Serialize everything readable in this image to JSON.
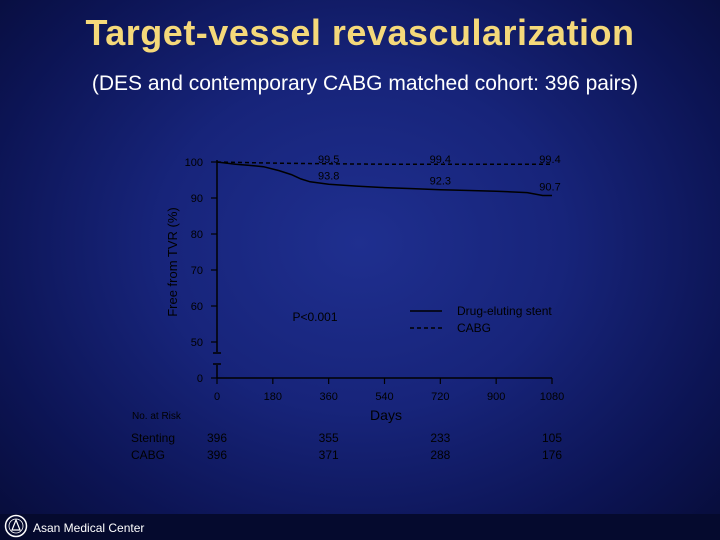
{
  "slide": {
    "title": "Target-vessel revascularization",
    "subtitle": "(DES and contemporary CABG matched cohort: 396 pairs)",
    "footer": "Asan Medical Center"
  },
  "colors": {
    "title": "#f5d97a",
    "background": "#17247a",
    "series": "#000000"
  },
  "chart_data": {
    "type": "line",
    "xlabel": "Days",
    "ylabel": "Free from TVR (%)",
    "x_ticks": [
      "0",
      "180",
      "360",
      "540",
      "720",
      "900",
      "1080"
    ],
    "y_ticks": [
      "0",
      "50",
      "60",
      "70",
      "80",
      "90",
      "100"
    ],
    "xlim": [
      0,
      1080
    ],
    "ylim": [
      0,
      100
    ],
    "axis_break": "between 0 and 50",
    "p_value": "P<0.001",
    "legend_position": "right",
    "series": [
      {
        "name": "Drug-eluting stent",
        "style": "solid",
        "x": [
          0,
          30,
          60,
          100,
          150,
          200,
          240,
          270,
          300,
          360,
          450,
          540,
          630,
          720,
          800,
          900,
          1000,
          1050,
          1080
        ],
        "y": [
          100,
          99.7,
          99.4,
          99.1,
          98.7,
          97.6,
          96.5,
          95.3,
          94.5,
          93.8,
          93.3,
          92.9,
          92.6,
          92.3,
          92.1,
          91.9,
          91.5,
          90.7,
          90.7
        ]
      },
      {
        "name": "CABG",
        "style": "dashed",
        "x": [
          0,
          180,
          360,
          540,
          720,
          900,
          1080
        ],
        "y": [
          100,
          99.7,
          99.5,
          99.4,
          99.4,
          99.4,
          99.4
        ]
      }
    ],
    "annotations": [
      {
        "x": 360,
        "y": 99.5,
        "text": "99.5"
      },
      {
        "x": 720,
        "y": 99.4,
        "text": "99.4"
      },
      {
        "x": 1080,
        "y": 99.4,
        "text": "99.4"
      },
      {
        "x": 360,
        "y": 93.8,
        "text": "93.8"
      },
      {
        "x": 720,
        "y": 92.3,
        "text": "92.3"
      },
      {
        "x": 1080,
        "y": 90.7,
        "text": "90.7"
      }
    ],
    "at_risk": {
      "heading": "No. at Risk",
      "rows": [
        {
          "label": "Stenting",
          "x": [
            0,
            360,
            720,
            1080
          ],
          "values": [
            "396",
            "355",
            "233",
            "105"
          ]
        },
        {
          "label": "CABG",
          "x": [
            0,
            360,
            720,
            1080
          ],
          "values": [
            "396",
            "371",
            "288",
            "176"
          ]
        }
      ]
    }
  }
}
